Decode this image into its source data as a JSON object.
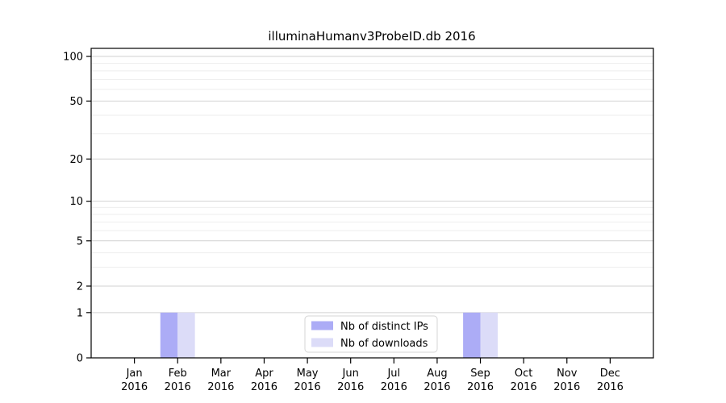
{
  "chart_data": {
    "type": "bar",
    "title": "illuminaHumanv3ProbeID.db 2016",
    "categories": [
      "Jan 2016",
      "Feb 2016",
      "Mar 2016",
      "Apr 2016",
      "May 2016",
      "Jun 2016",
      "Jul 2016",
      "Aug 2016",
      "Sep 2016",
      "Oct 2016",
      "Nov 2016",
      "Dec 2016"
    ],
    "series": [
      {
        "name": "Nb of distinct IPs",
        "color": "#acacf6",
        "values": [
          0,
          1,
          0,
          0,
          0,
          0,
          0,
          0,
          1,
          0,
          0,
          0
        ]
      },
      {
        "name": "Nb of downloads",
        "color": "#dcdcf8",
        "values": [
          0,
          1,
          0,
          0,
          0,
          0,
          0,
          0,
          1,
          0,
          0,
          0
        ]
      }
    ],
    "y_axis": {
      "scale": "log1p",
      "ticks": [
        0,
        1,
        2,
        5,
        10,
        20,
        50,
        100
      ],
      "minor_gridlines": [
        3,
        4,
        6,
        7,
        8,
        9,
        30,
        40,
        60,
        70,
        80,
        90
      ],
      "ylim": [
        0,
        113
      ]
    },
    "x_axis": {
      "tick_years_shown": "2016"
    },
    "legend": {
      "position": "inside-bottom-center"
    },
    "grid": true,
    "colors": {
      "major_gridline": "#d2d2d2",
      "minor_gridline": "#eeeeee",
      "spine": "#000000",
      "legend_border": "#d5d5d5",
      "legend_background": "#ffffff"
    }
  }
}
